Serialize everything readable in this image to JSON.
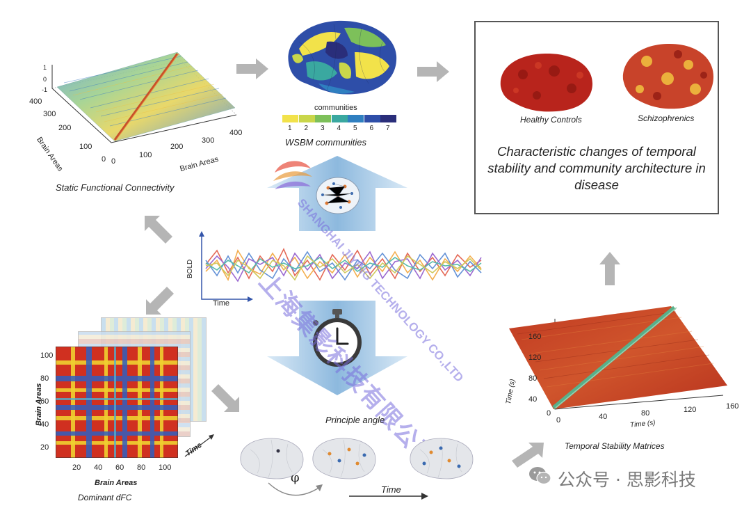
{
  "static_fc": {
    "caption": "Static Functional Connectivity",
    "x_label": "Brain Areas",
    "y_label": "Brain Areas",
    "x_ticks": [
      "0",
      "100",
      "200",
      "300",
      "400"
    ],
    "y_ticks": [
      "400",
      "300",
      "200",
      "100",
      "0"
    ],
    "z_ticks": [
      "1",
      "0",
      "-1"
    ]
  },
  "wsbm": {
    "caption": "WSBM communities",
    "legend_title": "communities",
    "legend_labels": [
      "1",
      "2",
      "3",
      "4",
      "5",
      "6",
      "7"
    ],
    "legend_colors": [
      "#f2e24a",
      "#c9d64a",
      "#7dc05a",
      "#3aa8a0",
      "#2f7fc0",
      "#2e4ea8",
      "#2a2e7a"
    ]
  },
  "disease_box": {
    "left_label": "Healthy Controls",
    "right_label": "Schizophrenics",
    "text": "Characteristic changes of temporal stability and community architecture in disease"
  },
  "bold": {
    "y_label": "BOLD",
    "x_label": "Time"
  },
  "dfc": {
    "caption": "Dominant dFC",
    "x_label": "Brain Areas",
    "y_label": "Brain Areas",
    "x_ticks": [
      "20",
      "40",
      "60",
      "80",
      "100"
    ],
    "y_ticks": [
      "100",
      "80",
      "60",
      "40",
      "20"
    ],
    "depth_label": "Time"
  },
  "principle": {
    "caption": "Principle angle",
    "angle_symbol": "φ",
    "time_label": "Time"
  },
  "tsm": {
    "caption": "Temporal Stability Matrices",
    "y_label": "Time (s)",
    "x_label": "Time (s)",
    "y_ticks": [
      "160",
      "120",
      "80",
      "40",
      "0"
    ],
    "x_ticks": [
      "0",
      "40",
      "80",
      "120",
      "160"
    ]
  },
  "watermark": {
    "line1": "上海集影科技有限公司",
    "line2": "SHANGHAI JIYING TECHNOLOGY CO.,LTD"
  },
  "wechat": {
    "text": "公众号 · 思影科技"
  },
  "colors": {
    "arrow_gray": "#b5b5b5",
    "blue_arrow": "#8db9de",
    "brain_red": "#b8241c",
    "surface_red": "#c8432a"
  }
}
